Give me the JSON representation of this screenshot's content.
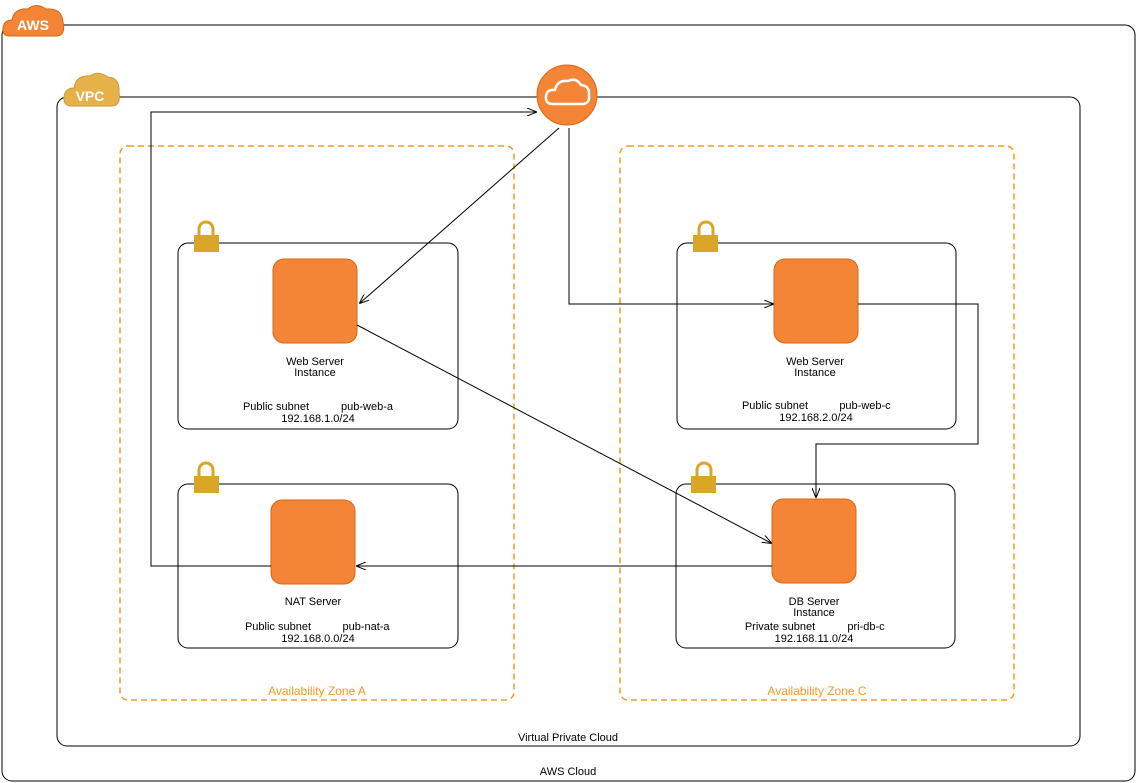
{
  "colors": {
    "orange": "#f58536",
    "orange_dark": "#d86613",
    "zone_border": "#f7981f",
    "vpc_gold": "#e7b14a",
    "lock_gold": "#d9a627",
    "line": "#000000"
  },
  "aws_badge": {
    "label": "AWS",
    "icon": "cloud-icon"
  },
  "vpc_badge": {
    "label": "VPC",
    "icon": "cloud-icon"
  },
  "gateway": {
    "icon": "internet-gateway-cloud-icon"
  },
  "zones": {
    "a": {
      "label": "Availability Zone A"
    },
    "c": {
      "label": "Availability Zone C"
    }
  },
  "subnets": {
    "pub_web_a": {
      "kind": "Public subnet",
      "name": "pub-web-a",
      "cidr": "192.168.1.0/24",
      "instance_line1": "Web Server",
      "instance_line2": "Instance"
    },
    "pub_nat_a": {
      "kind": "Public subnet",
      "name": "pub-nat-a",
      "cidr": "192.168.0.0/24",
      "instance_line1": "NAT Server",
      "instance_line2": ""
    },
    "pub_web_c": {
      "kind": "Public subnet",
      "name": "pub-web-c",
      "cidr": "192.168.2.0/24",
      "instance_line1": "Web Server",
      "instance_line2": "Instance"
    },
    "pri_db_c": {
      "kind": "Private subnet",
      "name": "pri-db-c",
      "cidr": "192.168.11.0/24",
      "instance_line1": "DB Server",
      "instance_line2": "Instance"
    }
  },
  "vpc_label": "Virtual Private Cloud",
  "cloud_label": "AWS Cloud"
}
